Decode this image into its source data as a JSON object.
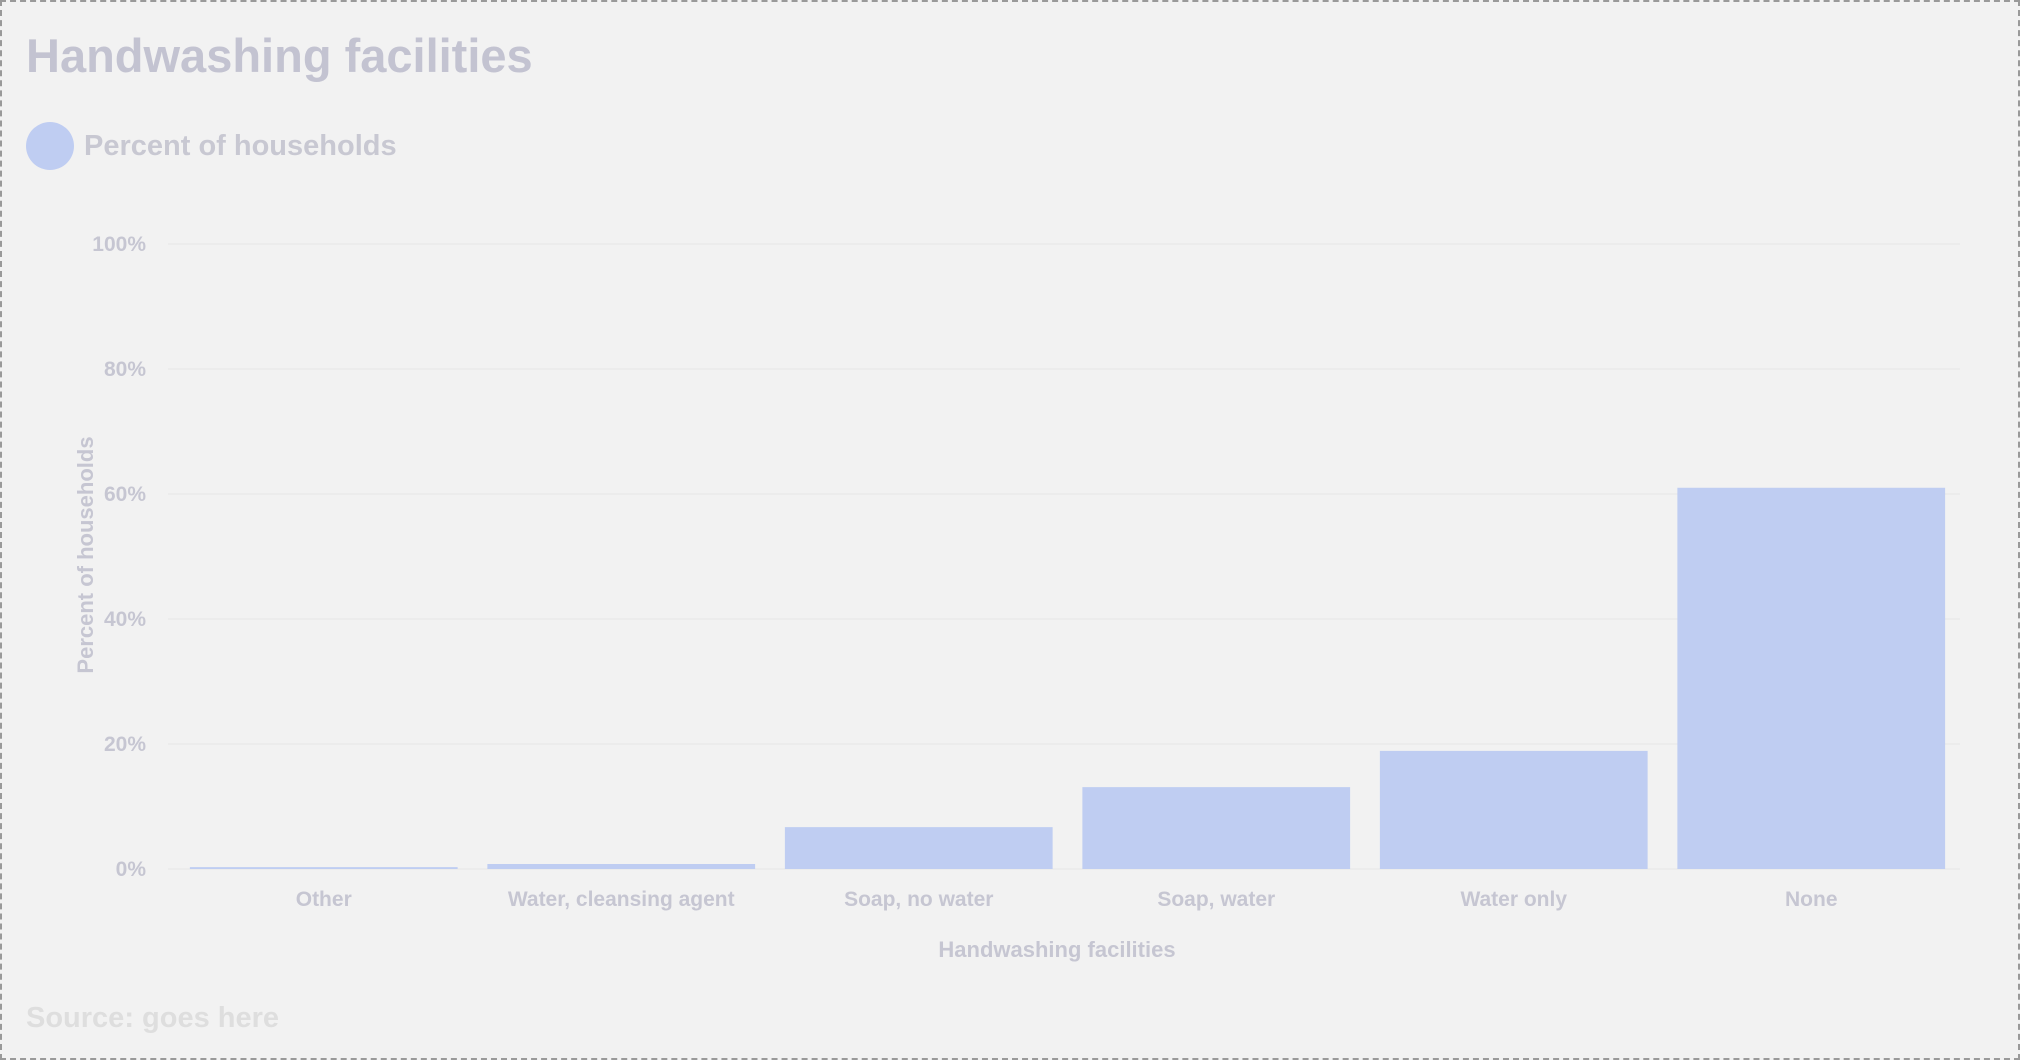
{
  "title": "Handwashing facilities",
  "legend": {
    "label": "Percent of households"
  },
  "source": "Source: goes here",
  "colors": {
    "bar": "#bfcdf2",
    "background": "#f2f2f2",
    "text": "#c6c6d2"
  },
  "chart_data": {
    "type": "bar",
    "title": "Handwashing facilities",
    "categories": [
      "Other",
      "Water, cleansing agent",
      "Soap, no water",
      "Soap, water",
      "Water only",
      "None"
    ],
    "series": [
      {
        "name": "Percent of households",
        "values": [
          0.3,
          0.8,
          6.7,
          13.1,
          18.9,
          61.0
        ]
      }
    ],
    "xlabel": "Handwashing facilities",
    "ylabel": "Percent of households",
    "ylim": [
      0,
      100
    ],
    "yticks": [
      0,
      20,
      40,
      60,
      80,
      100
    ],
    "ytick_labels": [
      "0%",
      "20%",
      "40%",
      "60%",
      "80%",
      "100%"
    ],
    "grid": true,
    "legend_position": "top-left"
  }
}
